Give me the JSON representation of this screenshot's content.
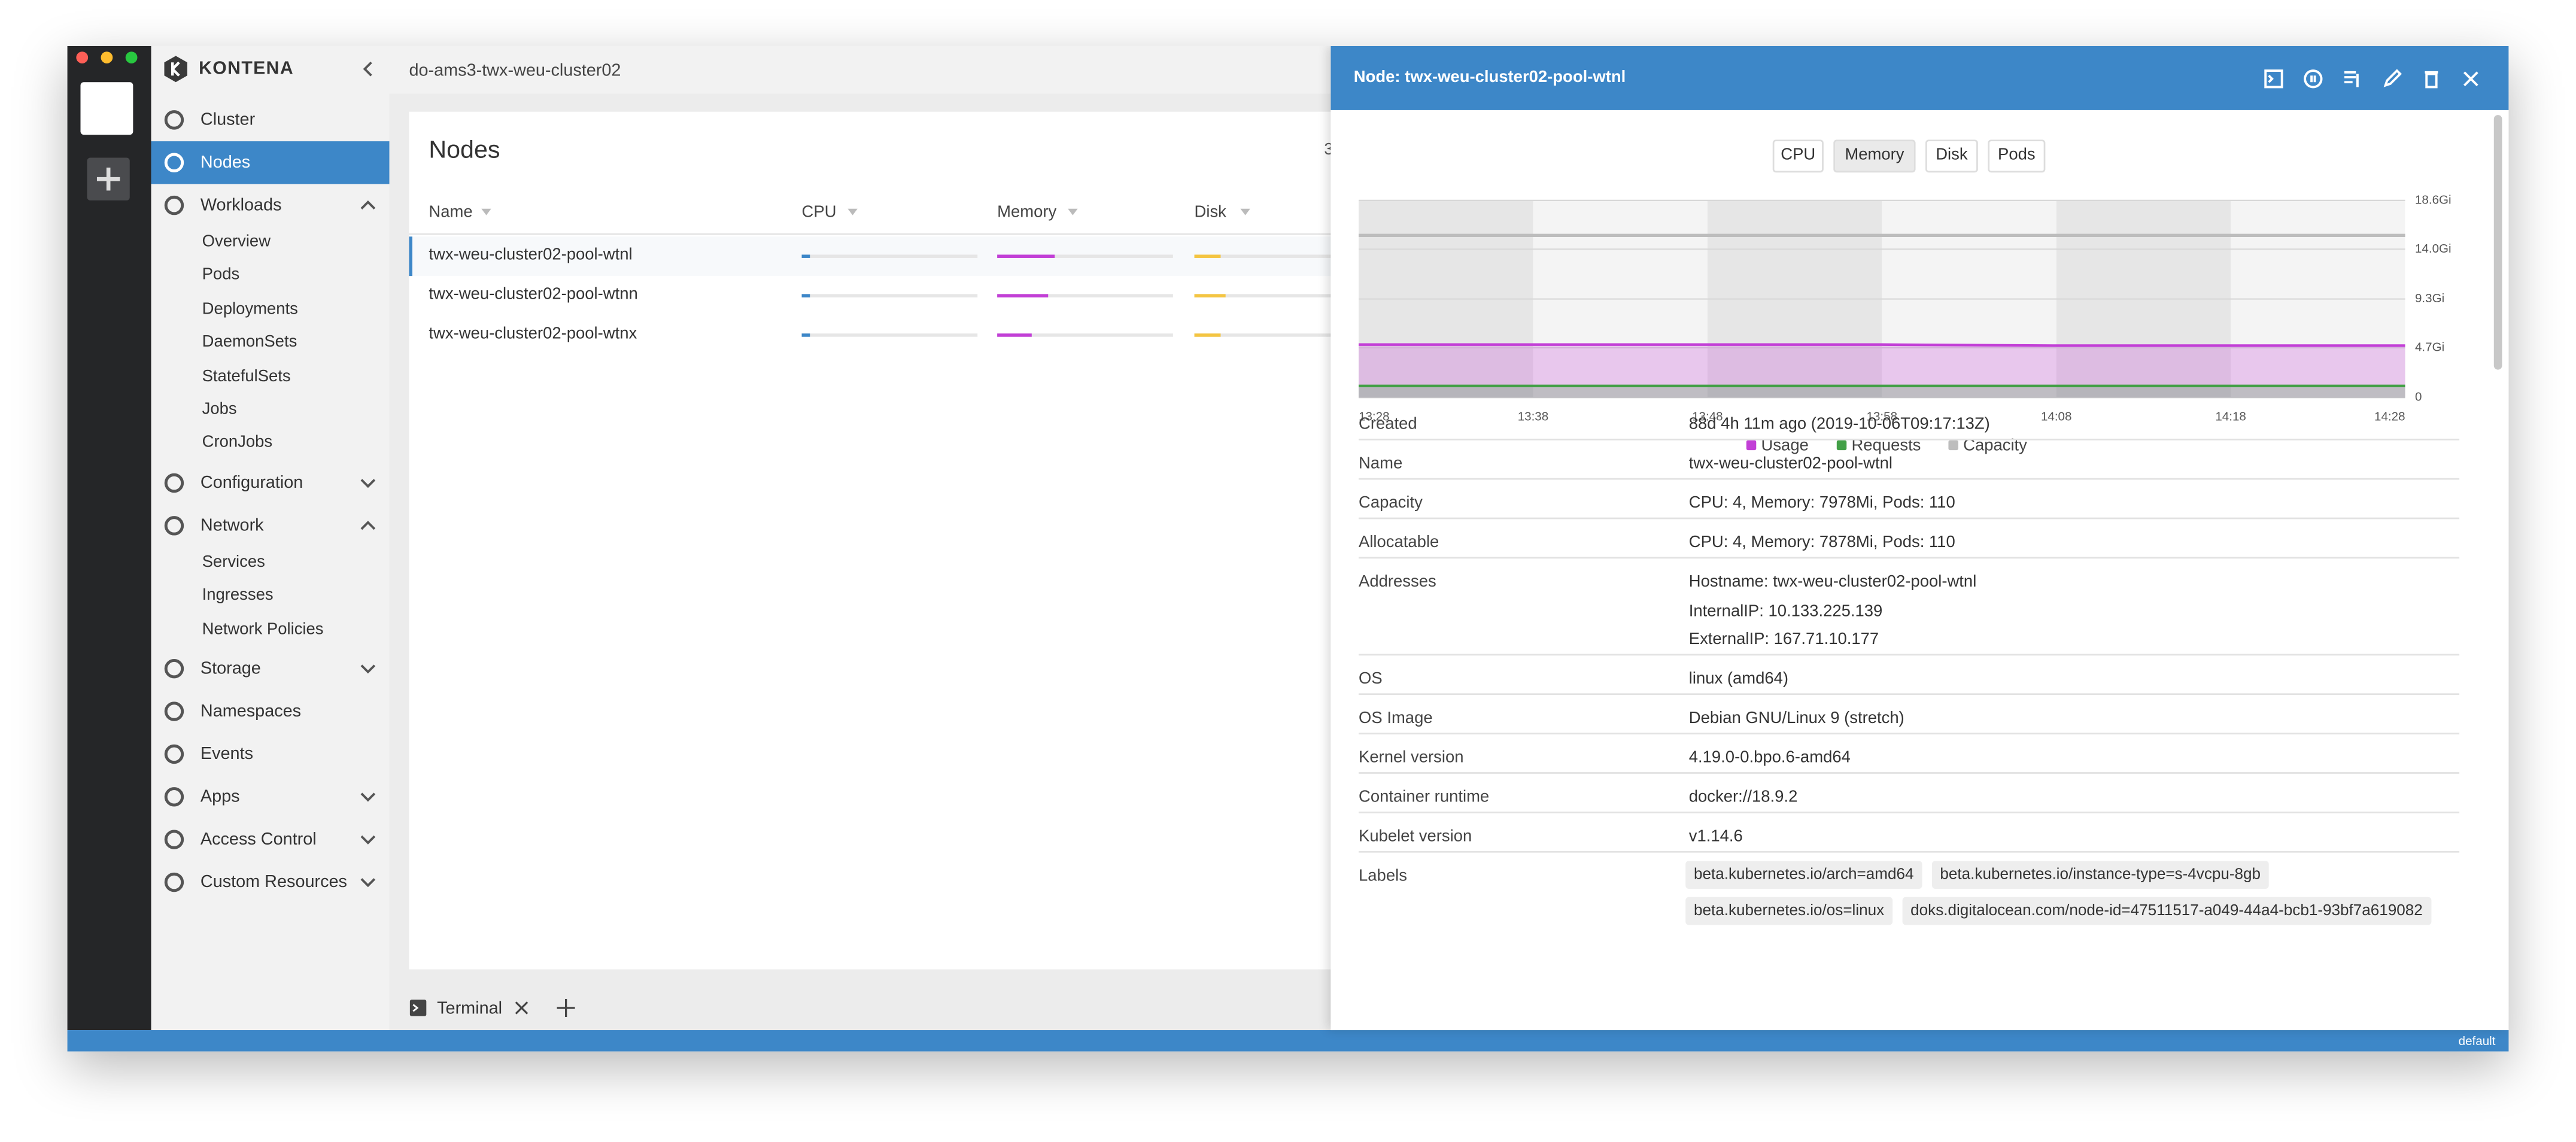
{
  "window": {
    "breadcrumb": "do-ams3-twx-weu-cluster02"
  },
  "sidebar": {
    "brand": "KONTENA",
    "items": [
      {
        "label": "Cluster"
      },
      {
        "label": "Nodes",
        "active": true
      },
      {
        "label": "Workloads",
        "expanded": true,
        "children": [
          "Overview",
          "Pods",
          "Deployments",
          "DaemonSets",
          "StatefulSets",
          "Jobs",
          "CronJobs"
        ]
      },
      {
        "label": "Configuration",
        "expanded": false
      },
      {
        "label": "Network",
        "expanded": true,
        "children": [
          "Services",
          "Ingresses",
          "Network Policies"
        ]
      },
      {
        "label": "Storage",
        "expanded": false
      },
      {
        "label": "Namespaces"
      },
      {
        "label": "Events"
      },
      {
        "label": "Apps",
        "expanded": false
      },
      {
        "label": "Access Control",
        "expanded": false
      },
      {
        "label": "Custom Resources",
        "expanded": false
      }
    ]
  },
  "nodes": {
    "title": "Nodes",
    "count": 3,
    "columns": [
      "Name",
      "CPU",
      "Memory",
      "Disk"
    ],
    "rows": [
      {
        "name": "twx-weu-cluster02-pool-wtnl",
        "cpu": 5,
        "memory": 33,
        "disk": 15,
        "selected": true
      },
      {
        "name": "twx-weu-cluster02-pool-wtnn",
        "cpu": 5,
        "memory": 29,
        "disk": 18
      },
      {
        "name": "twx-weu-cluster02-pool-wtnx",
        "cpu": 5,
        "memory": 20,
        "disk": 15
      }
    ]
  },
  "terminal": {
    "tab": "Terminal"
  },
  "drawer": {
    "title": "Node: twx-weu-cluster02-pool-wtnl",
    "tabs": [
      "CPU",
      "Memory",
      "Disk",
      "Pods"
    ],
    "active_tab": 1,
    "chart": {
      "type": "line",
      "x": [
        "13:28",
        "13:38",
        "13:48",
        "13:58",
        "14:08",
        "14:18",
        "14:28"
      ],
      "ylim": [
        0,
        18.6
      ],
      "yticks": [
        0,
        {
          "value": 4.7,
          "label": "4.7Gi"
        },
        {
          "value": 9.3,
          "label": "9.3Gi"
        },
        {
          "value": 14.0,
          "label": "14.0Gi"
        },
        {
          "value": 18.6,
          "label": "18.6Gi"
        }
      ],
      "grid": true,
      "series": [
        {
          "name": "Usage",
          "color": "#c23fd6",
          "values": [
            5.0,
            5.0,
            5.0,
            5.0,
            4.9,
            4.9,
            4.9
          ]
        },
        {
          "name": "Requests",
          "color": "#43a047",
          "values": [
            1.1,
            1.1,
            1.1,
            1.1,
            1.1,
            1.1,
            1.1
          ]
        },
        {
          "name": "Capacity",
          "color": "#bdbdbd",
          "values": [
            15.3,
            15.3,
            15.3,
            15.3,
            15.3,
            15.3,
            15.3
          ]
        }
      ]
    },
    "details": [
      {
        "label": "Created",
        "value": "88d 4h 11m ago (2019-10-06T09:17:13Z)"
      },
      {
        "label": "Name",
        "value": "twx-weu-cluster02-pool-wtnl"
      },
      {
        "label": "Capacity",
        "value": "CPU: 4, Memory: 7978Mi, Pods: 110"
      },
      {
        "label": "Allocatable",
        "value": "CPU: 4, Memory: 7878Mi, Pods: 110"
      },
      {
        "label": "Addresses",
        "value": [
          "Hostname: twx-weu-cluster02-pool-wtnl",
          "InternalIP: 10.133.225.139",
          "ExternalIP: 167.71.10.177"
        ]
      },
      {
        "label": "OS",
        "value": "linux (amd64)"
      },
      {
        "label": "OS Image",
        "value": "Debian GNU/Linux 9 (stretch)"
      },
      {
        "label": "Kernel version",
        "value": "4.19.0-0.bpo.6-amd64"
      },
      {
        "label": "Container runtime",
        "value": "docker://18.9.2"
      },
      {
        "label": "Kubelet version",
        "value": "v1.14.6"
      },
      {
        "label": "Labels",
        "chips": [
          "beta.kubernetes.io/arch=amd64",
          "beta.kubernetes.io/instance-type=s-4vcpu-8gb",
          "beta.kubernetes.io/os=linux",
          "doks.digitalocean.com/node-id=47511517-a049-44a4-bcb1-93bf7a619082"
        ]
      }
    ]
  },
  "statusbar": {
    "context": "default"
  }
}
